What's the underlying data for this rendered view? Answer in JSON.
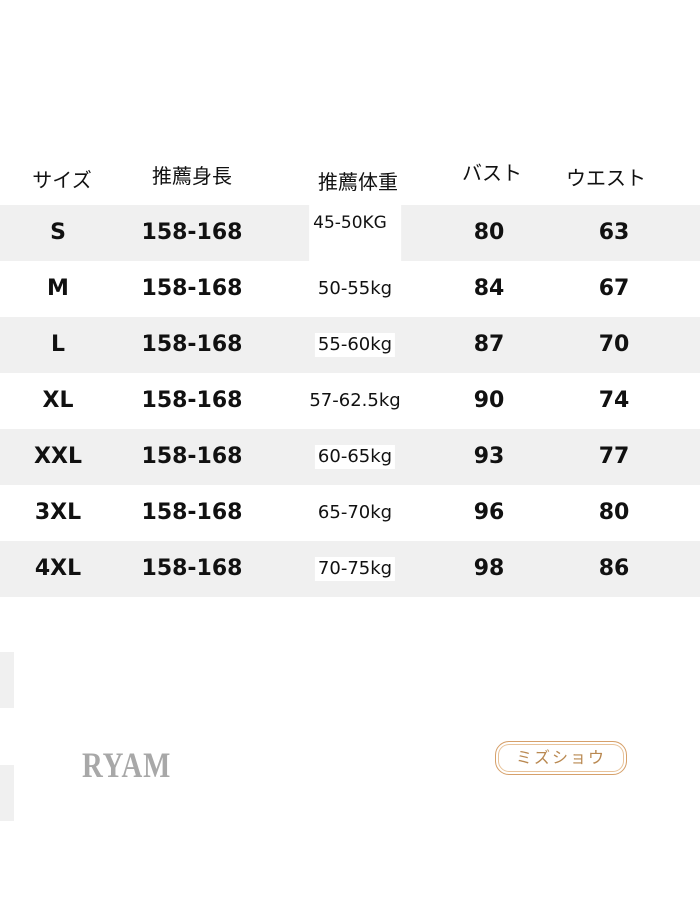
{
  "headers": [
    "サイズ",
    "推薦身長",
    "推薦体重",
    "バスト",
    "ウエスト"
  ],
  "rows": [
    {
      "size": "S",
      "height": "158-168",
      "weight": "45-50KG",
      "bust": "80",
      "waist": "63"
    },
    {
      "size": "M",
      "height": "158-168",
      "weight": "50-55kg",
      "bust": "84",
      "waist": "67"
    },
    {
      "size": "L",
      "height": "158-168",
      "weight": "55-60kg",
      "bust": "87",
      "waist": "70"
    },
    {
      "size": "XL",
      "height": "158-168",
      "weight": "57-62.5kg",
      "bust": "90",
      "waist": "74"
    },
    {
      "size": "XXL",
      "height": "158-168",
      "weight": "60-65kg",
      "bust": "93",
      "waist": "77"
    },
    {
      "size": "3XL",
      "height": "158-168",
      "weight": "65-70kg",
      "bust": "96",
      "waist": "80"
    },
    {
      "size": "4XL",
      "height": "158-168",
      "weight": "70-75kg",
      "bust": "98",
      "waist": "86"
    }
  ],
  "logos": {
    "left": "RYAM",
    "right": "ミズショウ"
  },
  "colors": {
    "stripe": "#f0f0f0",
    "logo_gold": "#b98850",
    "logo_grey": "#a8a8a8"
  }
}
